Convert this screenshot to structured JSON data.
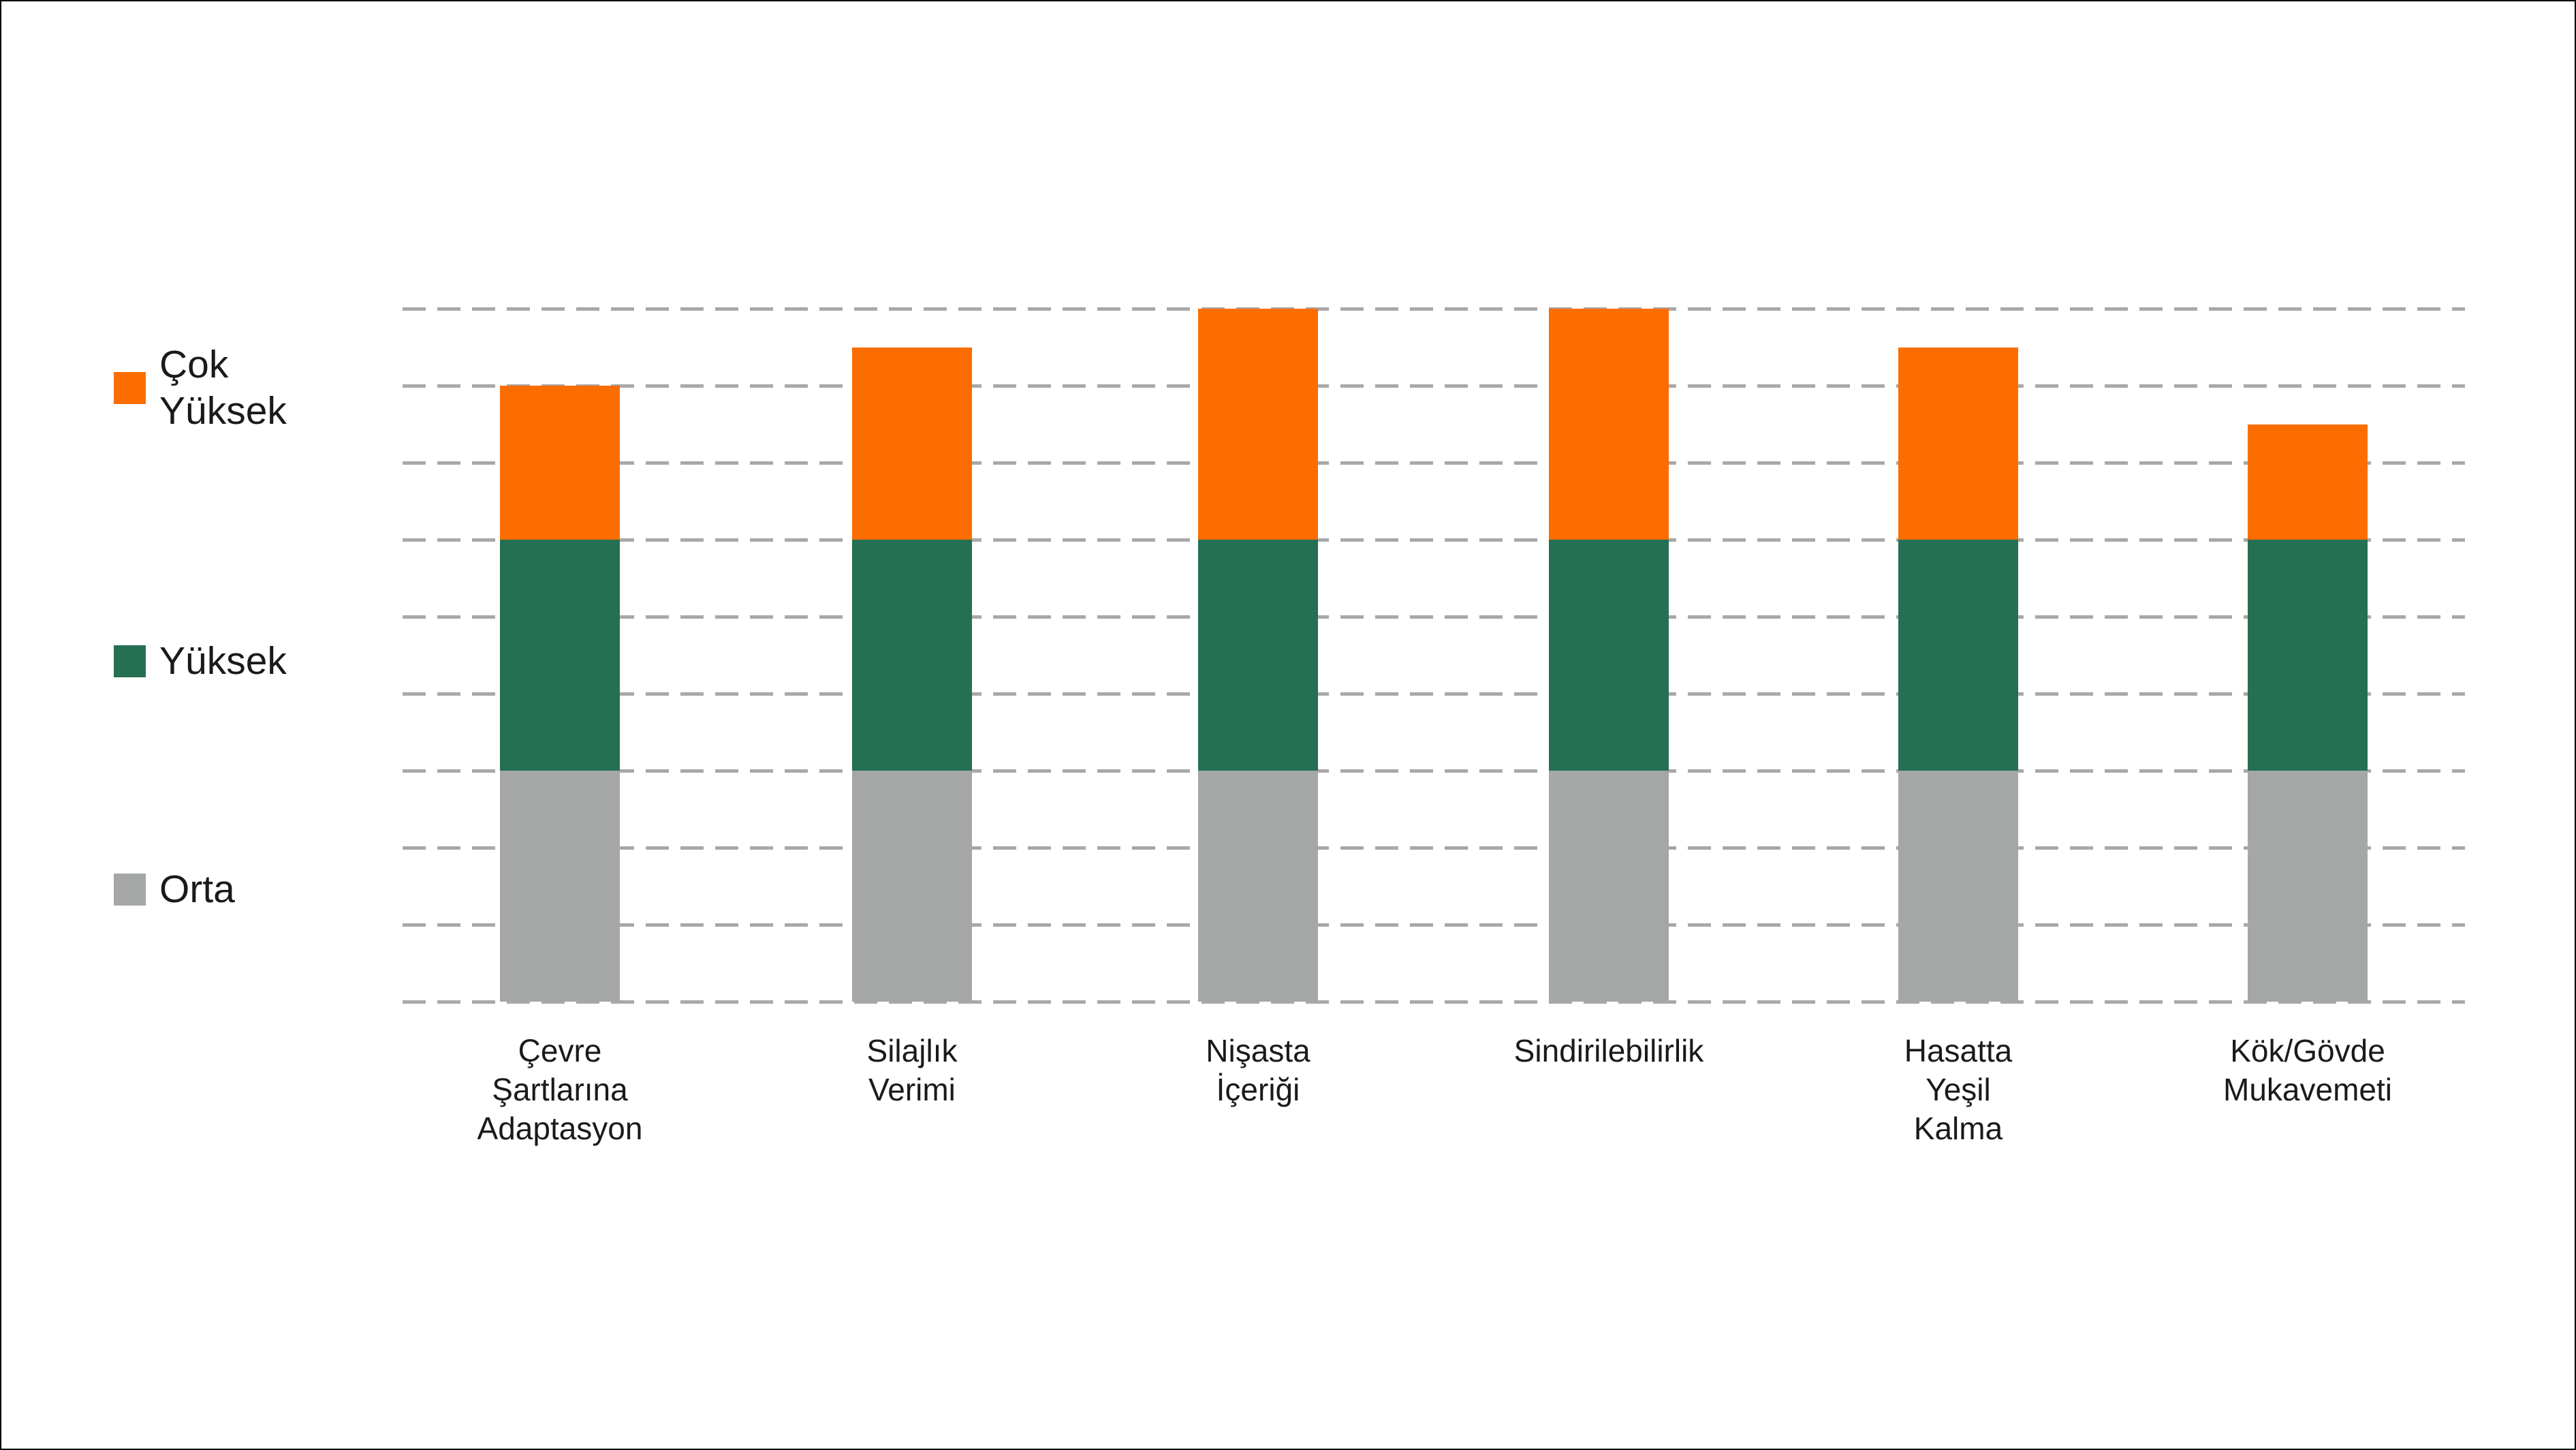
{
  "chart_data": {
    "type": "bar",
    "stacked": true,
    "title": "",
    "xlabel": "",
    "ylabel": "",
    "ylim": [
      0,
      9
    ],
    "gridline_count": 10,
    "grid_style": "dashed",
    "grid_color": "#A8A8A8",
    "legend_position": "left",
    "categories": [
      "Çevre Şartlarına Adaptasyon",
      "Silajlık Verimi",
      "Nişasta İçeriği",
      "Sindirilebilirlik",
      "Hasatta Yeşil Kalma",
      "Kök/Gövde Mukavemeti"
    ],
    "category_display": [
      "Çevre\nŞartlarına\nAdaptasyon",
      "Silajlık\nVerimi",
      "Nişasta\nİçeriği",
      "Sindirilebilirlik",
      "Hasatta\nYeşil\nKalma",
      "Kök/Gövde\nMukavemeti"
    ],
    "series": [
      {
        "name": "Orta",
        "color": "#A4A7A6",
        "values": [
          3,
          3,
          3,
          3,
          3,
          3
        ]
      },
      {
        "name": "Yüksek",
        "color": "#256F52",
        "values": [
          3,
          3,
          3,
          3,
          3,
          3
        ]
      },
      {
        "name": "Çok Yüksek",
        "color": "#FB6D00",
        "values": [
          2,
          2.5,
          3,
          3,
          2.5,
          1.5
        ]
      }
    ],
    "totals": [
      8,
      8.5,
      9,
      9,
      8.5,
      7.5
    ]
  },
  "legend": {
    "items": [
      {
        "label": "Çok Yüksek",
        "label_display": "Çok\nYüksek",
        "color": "#FB6D00"
      },
      {
        "label": "Yüksek",
        "label_display": "Yüksek",
        "color": "#256F52"
      },
      {
        "label": "Orta",
        "label_display": "Orta",
        "color": "#A4A7A6"
      }
    ]
  }
}
